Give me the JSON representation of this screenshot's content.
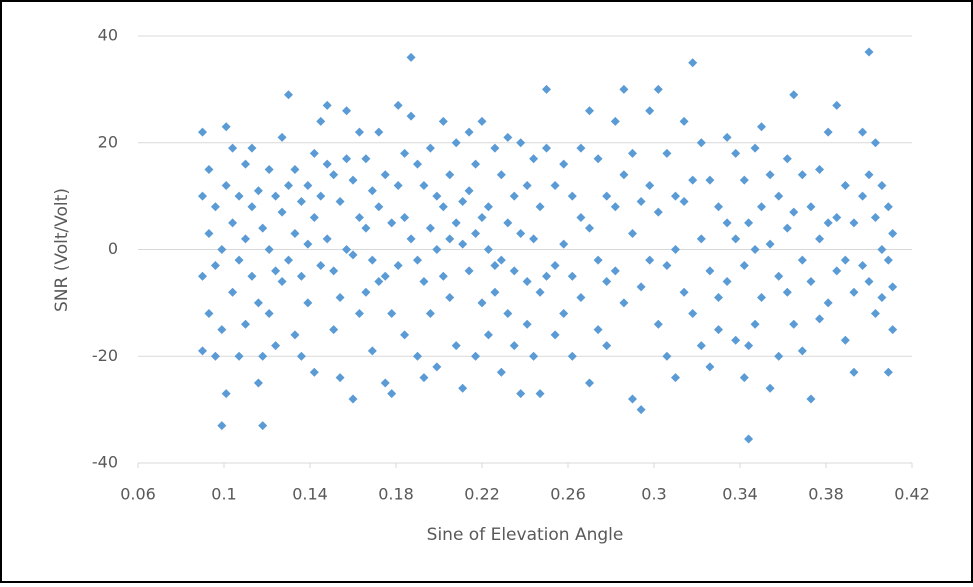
{
  "chart_data": {
    "type": "scatter",
    "x_label": "Sine of Elevation Angle",
    "y_label": "SNR (Volt/Volt)",
    "color": "#5b9bd5",
    "xlim": [
      0.06,
      0.42
    ],
    "xticks": [
      0.06,
      0.1,
      0.14,
      0.18,
      0.22,
      0.26,
      0.3,
      0.34,
      0.38,
      0.42
    ],
    "ylim": [
      -40,
      40
    ],
    "yticks": [
      -40,
      -20,
      0,
      20,
      40
    ],
    "grid": true,
    "x": [
      0.09,
      0.09,
      0.09,
      0.09,
      0.093,
      0.093,
      0.093,
      0.096,
      0.096,
      0.096,
      0.099,
      0.099,
      0.099,
      0.101,
      0.101,
      0.101,
      0.104,
      0.104,
      0.104,
      0.107,
      0.107,
      0.107,
      0.11,
      0.11,
      0.11,
      0.113,
      0.113,
      0.113,
      0.116,
      0.116,
      0.116,
      0.118,
      0.118,
      0.118,
      0.121,
      0.121,
      0.121,
      0.124,
      0.124,
      0.124,
      0.127,
      0.127,
      0.127,
      0.13,
      0.13,
      0.13,
      0.133,
      0.133,
      0.133,
      0.136,
      0.136,
      0.136,
      0.139,
      0.139,
      0.139,
      0.142,
      0.142,
      0.142,
      0.145,
      0.145,
      0.145,
      0.148,
      0.148,
      0.148,
      0.151,
      0.151,
      0.151,
      0.154,
      0.154,
      0.154,
      0.157,
      0.157,
      0.157,
      0.16,
      0.16,
      0.16,
      0.163,
      0.163,
      0.163,
      0.166,
      0.166,
      0.166,
      0.169,
      0.169,
      0.169,
      0.172,
      0.172,
      0.172,
      0.175,
      0.175,
      0.175,
      0.178,
      0.178,
      0.178,
      0.181,
      0.181,
      0.181,
      0.184,
      0.184,
      0.184,
      0.187,
      0.187,
      0.187,
      0.19,
      0.19,
      0.19,
      0.193,
      0.193,
      0.193,
      0.196,
      0.196,
      0.196,
      0.199,
      0.199,
      0.199,
      0.202,
      0.202,
      0.202,
      0.205,
      0.205,
      0.205,
      0.208,
      0.208,
      0.208,
      0.211,
      0.211,
      0.211,
      0.214,
      0.214,
      0.214,
      0.217,
      0.217,
      0.217,
      0.22,
      0.22,
      0.22,
      0.223,
      0.223,
      0.223,
      0.226,
      0.226,
      0.226,
      0.229,
      0.229,
      0.229,
      0.232,
      0.232,
      0.232,
      0.235,
      0.235,
      0.235,
      0.238,
      0.238,
      0.238,
      0.241,
      0.241,
      0.241,
      0.244,
      0.244,
      0.244,
      0.247,
      0.247,
      0.247,
      0.25,
      0.25,
      0.25,
      0.254,
      0.254,
      0.254,
      0.258,
      0.258,
      0.258,
      0.262,
      0.262,
      0.262,
      0.266,
      0.266,
      0.266,
      0.27,
      0.27,
      0.27,
      0.274,
      0.274,
      0.274,
      0.278,
      0.278,
      0.278,
      0.282,
      0.282,
      0.282,
      0.286,
      0.286,
      0.286,
      0.29,
      0.29,
      0.29,
      0.294,
      0.294,
      0.294,
      0.298,
      0.298,
      0.298,
      0.302,
      0.302,
      0.302,
      0.306,
      0.306,
      0.306,
      0.31,
      0.31,
      0.31,
      0.314,
      0.314,
      0.314,
      0.318,
      0.318,
      0.318,
      0.322,
      0.322,
      0.322,
      0.326,
      0.326,
      0.326,
      0.33,
      0.33,
      0.33,
      0.334,
      0.334,
      0.334,
      0.338,
      0.338,
      0.338,
      0.342,
      0.342,
      0.342,
      0.344,
      0.344,
      0.344,
      0.347,
      0.347,
      0.347,
      0.35,
      0.35,
      0.35,
      0.354,
      0.354,
      0.354,
      0.358,
      0.358,
      0.358,
      0.362,
      0.362,
      0.362,
      0.365,
      0.365,
      0.365,
      0.369,
      0.369,
      0.369,
      0.373,
      0.373,
      0.373,
      0.377,
      0.377,
      0.377,
      0.381,
      0.381,
      0.381,
      0.385,
      0.385,
      0.385,
      0.389,
      0.389,
      0.389,
      0.393,
      0.393,
      0.393,
      0.397,
      0.397,
      0.397,
      0.4,
      0.4,
      0.4,
      0.403,
      0.403,
      0.403,
      0.406,
      0.406,
      0.406,
      0.409,
      0.409,
      0.409,
      0.411,
      0.411,
      0.411
    ],
    "values": [
      22,
      10,
      -5,
      -19,
      15,
      3,
      -12,
      8,
      -3,
      -20,
      0,
      -15,
      -33,
      23,
      12,
      -27,
      19,
      5,
      -8,
      10,
      -2,
      -20,
      16,
      2,
      -14,
      19,
      8,
      -5,
      11,
      -10,
      -25,
      4,
      -20,
      -33,
      15,
      0,
      -12,
      10,
      -4,
      -18,
      21,
      7,
      -6,
      29,
      12,
      -2,
      15,
      3,
      -16,
      9,
      -5,
      -20,
      12,
      1,
      -10,
      18,
      6,
      -23,
      24,
      10,
      -3,
      27,
      16,
      2,
      14,
      -4,
      -15,
      9,
      -9,
      -24,
      26,
      17,
      0,
      13,
      -1,
      -28,
      22,
      6,
      -12,
      17,
      4,
      -8,
      11,
      -2,
      -19,
      22,
      8,
      -6,
      14,
      -5,
      -25,
      5,
      -12,
      -27,
      27,
      12,
      -3,
      18,
      6,
      -16,
      36,
      25,
      2,
      16,
      -2,
      -20,
      12,
      -6,
      -24,
      19,
      4,
      -12,
      10,
      0,
      -22,
      24,
      8,
      -5,
      14,
      2,
      -9,
      20,
      5,
      -18,
      9,
      1,
      -26,
      22,
      11,
      -4,
      16,
      3,
      -20,
      24,
      6,
      -10,
      8,
      0,
      -16,
      19,
      -3,
      -8,
      14,
      -2,
      -23,
      21,
      5,
      -12,
      10,
      -4,
      -18,
      20,
      3,
      -27,
      12,
      -6,
      -14,
      17,
      2,
      -20,
      8,
      -8,
      -27,
      30,
      19,
      -5,
      12,
      -3,
      -16,
      16,
      1,
      -12,
      10,
      -5,
      -20,
      19,
      6,
      -9,
      26,
      4,
      -25,
      17,
      -2,
      -15,
      10,
      -6,
      -18,
      24,
      8,
      -4,
      30,
      14,
      -10,
      18,
      3,
      -28,
      9,
      -7,
      -30,
      26,
      12,
      -2,
      30,
      7,
      -14,
      18,
      -3,
      -20,
      10,
      0,
      -24,
      24,
      9,
      -8,
      35,
      13,
      -12,
      20,
      2,
      -18,
      13,
      -4,
      -22,
      8,
      -9,
      -15,
      21,
      5,
      -6,
      18,
      2,
      -17,
      13,
      -3,
      -24,
      5,
      -18,
      -35.5,
      19,
      0,
      -14,
      23,
      8,
      -9,
      14,
      1,
      -26,
      10,
      -5,
      -20,
      17,
      4,
      -8,
      29,
      7,
      -14,
      14,
      -2,
      -19,
      8,
      -6,
      -28,
      15,
      2,
      -13,
      22,
      5,
      -10,
      27,
      6,
      -4,
      12,
      -2,
      -17,
      5,
      -8,
      -23,
      22,
      10,
      -3,
      37,
      14,
      -6,
      20,
      6,
      -12,
      12,
      0,
      -9,
      8,
      -2,
      -23,
      3,
      -7,
      -15
    ]
  }
}
